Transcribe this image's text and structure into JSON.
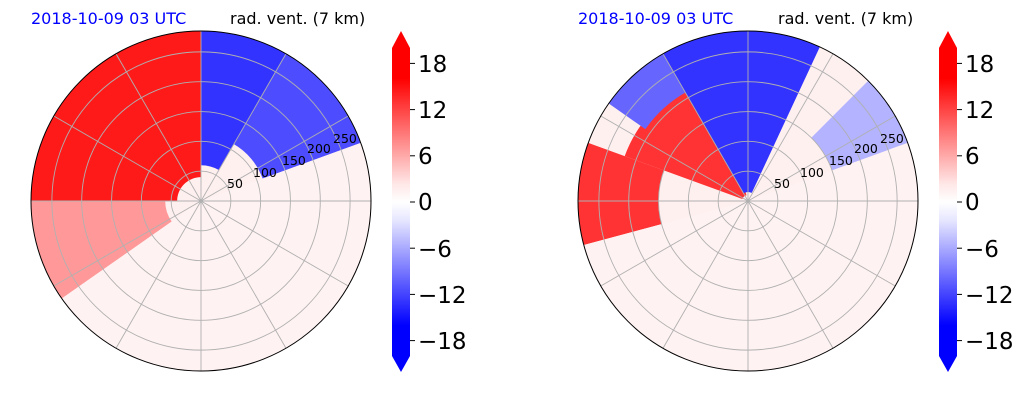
{
  "chart_data": [
    {
      "type": "heatmap",
      "projection": "polar",
      "date_label": "2018-10-09 03 UTC",
      "title": "rad. vent. (7 km)",
      "ring_labels": [
        "50",
        "100",
        "150",
        "200",
        "250"
      ],
      "ring_values": [
        50,
        100,
        150,
        200,
        250
      ],
      "max_range": 285,
      "value_range": [
        -20,
        20
      ],
      "colorbar": {
        "ticks": [
          "18",
          "12",
          "6",
          "0",
          "−6",
          "−12",
          "−18"
        ],
        "tick_values": [
          18,
          12,
          6,
          0,
          -6,
          -12,
          -18
        ],
        "extend": "both",
        "low_color": "#0000ff",
        "high_color": "#ff0000",
        "mid_color": "#ffffff"
      },
      "regions": [
        {
          "az_start": 270,
          "az_end": 360,
          "r_start": 40,
          "r_end": 285,
          "value": 18
        },
        {
          "az_start": 0,
          "az_end": 30,
          "r_start": 60,
          "r_end": 285,
          "value": -16
        },
        {
          "az_start": 30,
          "az_end": 70,
          "r_start": 110,
          "r_end": 285,
          "value": -14
        },
        {
          "az_start": 235,
          "az_end": 270,
          "r_start": 60,
          "r_end": 285,
          "value": 8
        },
        {
          "az_start": 70,
          "az_end": 235,
          "r_start": 0,
          "r_end": 285,
          "value": 1
        }
      ]
    },
    {
      "type": "heatmap",
      "projection": "polar",
      "date_label": "2018-10-09 03 UTC",
      "title": "rad. vent. (7 km)",
      "ring_labels": [
        "50",
        "100",
        "150",
        "200",
        "250"
      ],
      "ring_values": [
        50,
        100,
        150,
        200,
        250
      ],
      "max_range": 285,
      "value_range": [
        -20,
        20
      ],
      "colorbar": {
        "ticks": [
          "18",
          "12",
          "6",
          "0",
          "−6",
          "−12",
          "−18"
        ],
        "tick_values": [
          18,
          12,
          6,
          0,
          -6,
          -12,
          -18
        ],
        "extend": "both",
        "low_color": "#0000ff",
        "high_color": "#ff0000",
        "mid_color": "#ffffff"
      },
      "regions": [
        {
          "az_start": 290,
          "az_end": 345,
          "r_start": 10,
          "r_end": 220,
          "value": 16
        },
        {
          "az_start": 255,
          "az_end": 290,
          "r_start": 150,
          "r_end": 285,
          "value": 16
        },
        {
          "az_start": 330,
          "az_end": 25,
          "r_start": 15,
          "r_end": 285,
          "value": -16
        },
        {
          "az_start": 305,
          "az_end": 330,
          "r_start": 210,
          "r_end": 285,
          "value": -12
        },
        {
          "az_start": 45,
          "az_end": 70,
          "r_start": 150,
          "r_end": 285,
          "value": -6
        },
        {
          "az_start": 70,
          "az_end": 255,
          "r_start": 0,
          "r_end": 285,
          "value": 1
        }
      ]
    }
  ]
}
